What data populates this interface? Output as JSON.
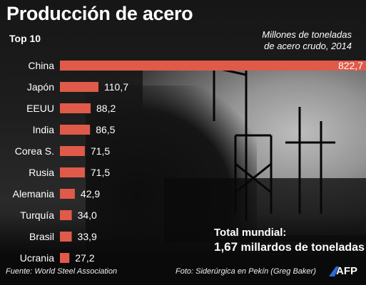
{
  "title": "Producción de acero",
  "subtitle": "Top 10",
  "units_line1": "Millones de toneladas",
  "units_line2": "de acero crudo, 2014",
  "bar_color": "#e05a4a",
  "chart_data": {
    "type": "bar",
    "orientation": "horizontal",
    "categories": [
      "China",
      "Japón",
      "EEUU",
      "India",
      "Corea S.",
      "Rusia",
      "Alemania",
      "Turquía",
      "Brasil",
      "Ucrania"
    ],
    "values": [
      822.7,
      110.7,
      88.2,
      86.5,
      71.5,
      71.5,
      42.9,
      34.0,
      33.9,
      27.2
    ],
    "value_labels": [
      "822,7",
      "110,7",
      "88,2",
      "86,5",
      "71,5",
      "71,5",
      "42,9",
      "34,0",
      "33,9",
      "27,2"
    ],
    "title": "Producción de acero",
    "unit": "Millones de toneladas de acero crudo, 2014",
    "grid": false
  },
  "total_label": "Total mundial:",
  "total_value": "1,67",
  "total_unit": "millardos de toneladas",
  "source": "Fuente: World Steel Association",
  "photo_credit": "Foto: Siderúrgica en Pekín (Greg Baker)",
  "logo_text": "AFP",
  "logo_icon": "afp-logo-icon"
}
